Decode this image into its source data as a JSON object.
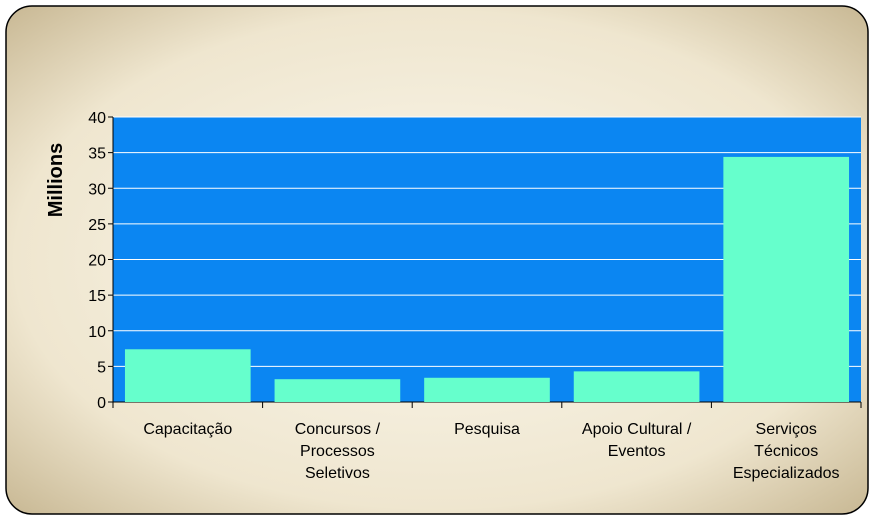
{
  "chart_data": {
    "type": "bar",
    "y_label": "Millions",
    "categories": [
      "Capacitação",
      "Concursos /\nProcessos\nSeletivos",
      "Pesquisa",
      "Apoio Cultural /\nEventos",
      "Serviços\nTécnicos\nEspecializados"
    ],
    "values": [
      7.4,
      3.2,
      3.4,
      4.3,
      34.4
    ],
    "color": "#66ffcc",
    "ylim": [
      0,
      40
    ],
    "yticks": [
      0,
      5,
      10,
      15,
      20,
      25,
      30,
      35,
      40
    ],
    "grid": true
  }
}
